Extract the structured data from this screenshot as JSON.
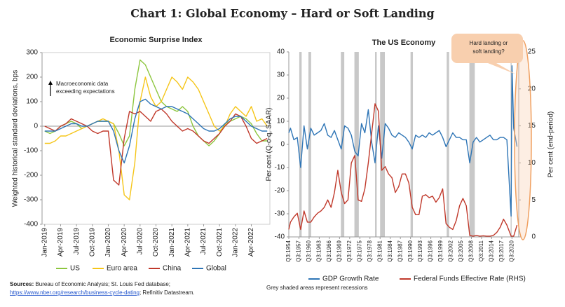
{
  "title": "Chart 1: Global Economy – Hard or Soft Landing",
  "sources_label": "Sources:",
  "sources_text": "Bureau of Economic Analysis; St. Louis Fed database;",
  "sources_link": "https://www.nber.org/research/business-cycle-dating",
  "sources_tail": "; Refinitiv Datastream.",
  "chart_data": [
    {
      "type": "line",
      "title": "Economic Surprise Index",
      "y_label": "Weighted historical standard deviations, bps",
      "annotation": [
        "Macroeconomic data",
        "exceeding expectations"
      ],
      "categories": [
        "Jan-2019",
        null,
        null,
        "Apr-2019",
        null,
        null,
        "Jul-2019",
        null,
        null,
        "Oct-2019",
        null,
        null,
        "Jan-2020",
        null,
        null,
        "Apr-2020",
        null,
        null,
        "Jul-2020",
        null,
        null,
        "Oct-2020",
        null,
        null,
        "Jan-2021",
        null,
        null,
        "Apr-2021",
        null,
        null,
        "Jul-2021",
        null,
        null,
        "Oct-2021",
        null,
        null,
        "Jan-2022",
        null,
        null,
        "Apr-2022",
        null,
        null,
        null
      ],
      "ylim": [
        -400,
        300
      ],
      "yticks": [
        -400,
        -300,
        -200,
        -100,
        0,
        100,
        200,
        300
      ],
      "series": [
        {
          "name": "US",
          "color": "#8dc63f",
          "values": [
            -20,
            -30,
            -20,
            0,
            10,
            20,
            10,
            -10,
            0,
            10,
            20,
            20,
            20,
            10,
            -30,
            -80,
            -40,
            150,
            270,
            250,
            200,
            150,
            100,
            80,
            70,
            60,
            80,
            60,
            0,
            -40,
            -60,
            -80,
            -60,
            -30,
            10,
            20,
            30,
            40,
            30,
            10,
            -30,
            -60,
            -60
          ]
        },
        {
          "name": "Euro area",
          "color": "#f5c518",
          "values": [
            -70,
            -70,
            -60,
            -40,
            -40,
            -30,
            -20,
            -10,
            0,
            10,
            20,
            30,
            20,
            10,
            -100,
            -280,
            -300,
            -150,
            100,
            200,
            120,
            80,
            100,
            150,
            200,
            180,
            150,
            200,
            180,
            150,
            100,
            50,
            0,
            -20,
            0,
            50,
            80,
            60,
            40,
            80,
            20,
            30,
            0
          ]
        },
        {
          "name": "China",
          "color": "#c0392b",
          "values": [
            0,
            -10,
            -20,
            0,
            10,
            30,
            20,
            10,
            0,
            -20,
            -30,
            -20,
            -20,
            -220,
            -240,
            -50,
            60,
            50,
            60,
            40,
            20,
            60,
            70,
            50,
            20,
            0,
            -20,
            -10,
            -20,
            -40,
            -60,
            -70,
            -50,
            -30,
            0,
            20,
            50,
            40,
            0,
            -50,
            -70,
            -60,
            -50
          ]
        },
        {
          "name": "Global",
          "color": "#2e75b6",
          "values": [
            -20,
            -20,
            -20,
            -10,
            0,
            10,
            10,
            0,
            0,
            10,
            20,
            20,
            20,
            -20,
            -100,
            -150,
            -80,
            30,
            100,
            110,
            90,
            80,
            70,
            80,
            80,
            70,
            60,
            50,
            30,
            10,
            -10,
            -20,
            -20,
            -10,
            10,
            30,
            40,
            40,
            20,
            0,
            -10,
            -20,
            -20
          ]
        }
      ]
    },
    {
      "type": "line",
      "title": "The US Economy",
      "y_label": "Per cent (Q-o-q, SAAR)",
      "y2_label": "Per cent (end-period)",
      "note": "Grey shaded areas represent recessions",
      "callout": [
        "Hard landing or",
        "soft landing?"
      ],
      "x": [
        1954.5,
        1955,
        1956,
        1957,
        1958,
        1959,
        1960,
        1961,
        1962,
        1963,
        1964,
        1965,
        1966,
        1967,
        1968,
        1969,
        1970,
        1971,
        1972,
        1973,
        1974,
        1975,
        1976,
        1977,
        1978,
        1979,
        1980,
        1981,
        1982,
        1983,
        1984,
        1985,
        1986,
        1987,
        1988,
        1989,
        1990,
        1991,
        1992,
        1993,
        1994,
        1995,
        1996,
        1997,
        1998,
        1999,
        2000,
        2001,
        2002,
        2003,
        2004,
        2005,
        2006,
        2007,
        2008,
        2009,
        2010,
        2011,
        2012,
        2013,
        2014,
        2015,
        2016,
        2017,
        2018,
        2019,
        2020.25,
        2020.5,
        2021,
        2022
      ],
      "xlim": [
        1954.5,
        2022.5
      ],
      "xticks": [
        {
          "value": 1954.5,
          "label": "Q3:1954"
        },
        {
          "value": 1957.5,
          "label": "Q3:1957"
        },
        {
          "value": 1960.5,
          "label": "Q3:1960"
        },
        {
          "value": 1963.5,
          "label": "Q3:1963"
        },
        {
          "value": 1966.5,
          "label": "Q3:1966"
        },
        {
          "value": 1969.5,
          "label": "Q3:1969"
        },
        {
          "value": 1972.5,
          "label": "Q3:1972"
        },
        {
          "value": 1975.5,
          "label": "Q3:1975"
        },
        {
          "value": 1978.5,
          "label": "Q3:1978"
        },
        {
          "value": 1981.5,
          "label": "Q3:1981"
        },
        {
          "value": 1984.5,
          "label": "Q3:1984"
        },
        {
          "value": 1987.5,
          "label": "Q3:1987"
        },
        {
          "value": 1990.5,
          "label": "Q3:1990"
        },
        {
          "value": 1993.5,
          "label": "Q3:1993"
        },
        {
          "value": 1996.5,
          "label": "Q3:1996"
        },
        {
          "value": 1999.5,
          "label": "Q3:1999"
        },
        {
          "value": 2002.5,
          "label": "Q3:2002"
        },
        {
          "value": 2005.5,
          "label": "Q3:2005"
        },
        {
          "value": 2008.5,
          "label": "Q3:2008"
        },
        {
          "value": 2011.5,
          "label": "Q3:2011"
        },
        {
          "value": 2014.5,
          "label": "Q3:2014"
        },
        {
          "value": 2017.5,
          "label": "Q3:2017"
        },
        {
          "value": 2020.5,
          "label": "Q3:2020"
        }
      ],
      "ylim": [
        -40,
        40
      ],
      "yticks": [
        -40,
        -30,
        -20,
        -10,
        0,
        10,
        20,
        30,
        40
      ],
      "y2lim": [
        0,
        25
      ],
      "y2ticks": [
        0,
        5,
        10,
        15,
        20,
        25
      ],
      "recessions": [
        [
          1957.6,
          1958.3
        ],
        [
          1960.3,
          1961.1
        ],
        [
          1969.9,
          1970.9
        ],
        [
          1973.9,
          1975.2
        ],
        [
          1980,
          1980.5
        ],
        [
          1981.5,
          1982.9
        ],
        [
          1990.5,
          1991.2
        ],
        [
          2001.2,
          2001.9
        ],
        [
          2007.9,
          2009.5
        ],
        [
          2020.1,
          2020.4
        ]
      ],
      "recession_color": "#c8c8c8",
      "series": [
        {
          "name": "GDP Growth Rate",
          "color": "#2e75b6",
          "values": [
            5,
            7,
            2,
            3,
            -10,
            8,
            -2,
            7,
            4,
            5,
            6,
            9,
            4,
            3,
            6,
            2,
            -2,
            8,
            7,
            4,
            -3,
            -5,
            9,
            5,
            15,
            1,
            -8,
            8,
            -6,
            9,
            7,
            4,
            3,
            5,
            4,
            3,
            1,
            -2,
            4,
            3,
            4,
            3,
            5,
            4,
            5,
            6,
            3,
            -1,
            2,
            5,
            3,
            3,
            2,
            2,
            -8,
            1,
            3,
            1,
            2,
            3,
            4,
            2,
            2,
            3,
            3,
            2,
            -31,
            34,
            7,
            -1
          ]
        },
        {
          "name": "Federal Funds Effective Rate (RHS)",
          "color": "#c0392b",
          "axis": "y2",
          "values": [
            1,
            2,
            2.7,
            3.2,
            1,
            3.5,
            2,
            2,
            2.7,
            3.2,
            3.5,
            4,
            5,
            4,
            6,
            9,
            6,
            4.5,
            5,
            10,
            11,
            5,
            4.8,
            6.5,
            10,
            14,
            18,
            17,
            9,
            9.5,
            8.5,
            8,
            6,
            6.8,
            8.5,
            8.5,
            7.3,
            4,
            3,
            3,
            5.5,
            5.7,
            5.3,
            5.5,
            4.7,
            5.3,
            6.5,
            1.8,
            1.3,
            1,
            2.2,
            4.2,
            5.2,
            4.2,
            0.2,
            0.1,
            0.2,
            0.1,
            0.15,
            0.1,
            0.1,
            0.2,
            0.6,
            1.3,
            2.4,
            1.6,
            0.1,
            0.1,
            0.1,
            1.6
          ]
        }
      ]
    }
  ]
}
